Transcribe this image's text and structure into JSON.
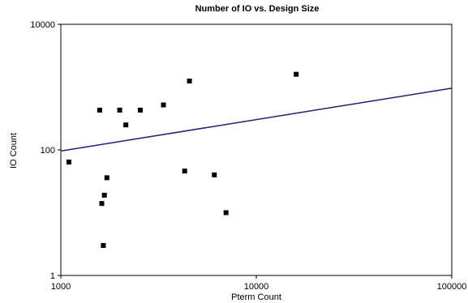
{
  "chart_data": {
    "type": "scatter",
    "title": "Number of IO vs. Design Size",
    "xlabel": "Pterm Count",
    "ylabel": "IO Count",
    "x_scale": "log",
    "y_scale": "log",
    "xlim": [
      1000,
      100000
    ],
    "ylim": [
      1,
      10000
    ],
    "x_ticks": [
      {
        "value": 1000,
        "label": "1000"
      },
      {
        "value": 10000,
        "label": "10000"
      },
      {
        "value": 100000,
        "label": "100000"
      }
    ],
    "y_ticks": [
      {
        "value": 1,
        "label": "1"
      },
      {
        "value": 100,
        "label": "100"
      },
      {
        "value": 10000,
        "label": "10000"
      }
    ],
    "grid": false,
    "legend": "none",
    "marker_color": "#000000",
    "trendline_color": "#1f1f7a",
    "points": [
      {
        "x": 1100,
        "y": 64
      },
      {
        "x": 1580,
        "y": 430
      },
      {
        "x": 1620,
        "y": 14
      },
      {
        "x": 1650,
        "y": 3
      },
      {
        "x": 1670,
        "y": 19
      },
      {
        "x": 1720,
        "y": 36
      },
      {
        "x": 2000,
        "y": 430
      },
      {
        "x": 2150,
        "y": 250
      },
      {
        "x": 2550,
        "y": 430
      },
      {
        "x": 3350,
        "y": 520
      },
      {
        "x": 4300,
        "y": 46
      },
      {
        "x": 4550,
        "y": 1250
      },
      {
        "x": 6100,
        "y": 40
      },
      {
        "x": 7000,
        "y": 10
      },
      {
        "x": 16000,
        "y": 1600
      }
    ],
    "trendline": {
      "x": [
        1000,
        100000
      ],
      "y": [
        96,
        960
      ]
    }
  }
}
